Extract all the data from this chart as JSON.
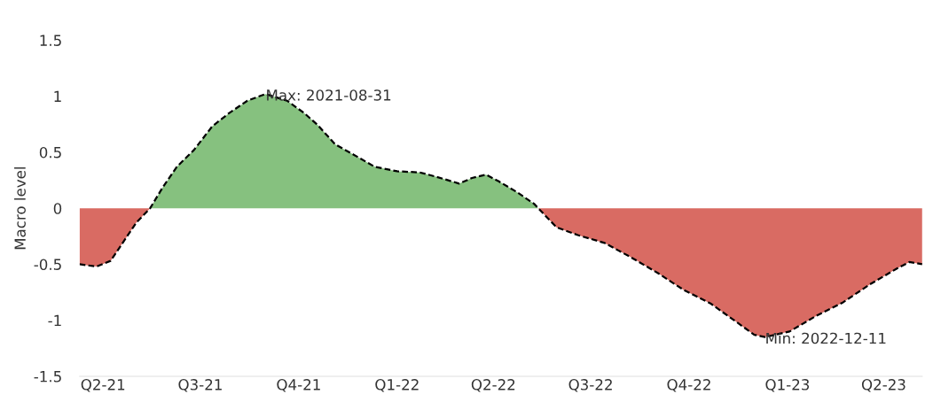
{
  "chart_data": {
    "type": "area",
    "ylabel": "Macro level",
    "x": [
      "2021-03-10",
      "2021-03-26",
      "2021-04-08",
      "2021-04-20",
      "2021-05-02",
      "2021-05-15",
      "2021-05-27",
      "2021-06-09",
      "2021-06-25",
      "2021-07-12",
      "2021-07-28",
      "2021-08-14",
      "2021-08-31",
      "2021-09-20",
      "2021-10-06",
      "2021-10-19",
      "2021-11-04",
      "2021-11-21",
      "2021-12-11",
      "2022-01-01",
      "2022-01-22",
      "2022-02-07",
      "2022-02-28",
      "2022-03-12",
      "2022-03-25",
      "2022-04-06",
      "2022-04-22",
      "2022-05-09",
      "2022-05-17",
      "2022-05-30",
      "2022-06-19",
      "2022-07-14",
      "2022-08-08",
      "2022-09-02",
      "2022-09-26",
      "2022-10-21",
      "2022-11-15",
      "2022-12-01",
      "2022-12-11",
      "2023-01-03",
      "2023-01-28",
      "2023-02-22",
      "2023-03-19",
      "2023-04-13",
      "2023-04-25",
      "2023-05-07"
    ],
    "series": [
      {
        "color": "#d96b63",
        "x": [
          "2021-03-10",
          "2021-03-26",
          "2021-04-08",
          "2021-04-20",
          "2021-05-02",
          "2021-05-15"
        ],
        "values": [
          -0.5,
          -0.52,
          -0.47,
          -0.3,
          -0.13,
          0
        ]
      },
      {
        "color": "#86c17f",
        "x": [
          "2021-05-15",
          "2021-05-27",
          "2021-06-09",
          "2021-06-25",
          "2021-07-12",
          "2021-07-28",
          "2021-08-14",
          "2021-08-31",
          "2021-09-20",
          "2021-10-06",
          "2021-10-19",
          "2021-11-04",
          "2021-11-21",
          "2021-12-11",
          "2022-01-01",
          "2022-01-22",
          "2022-02-07",
          "2022-02-28",
          "2022-03-12",
          "2022-03-25",
          "2022-04-06",
          "2022-04-22",
          "2022-05-09",
          "2022-05-13"
        ],
        "values": [
          0,
          0.19,
          0.37,
          0.52,
          0.73,
          0.85,
          0.96,
          1.02,
          0.96,
          0.85,
          0.74,
          0.57,
          0.48,
          0.37,
          0.33,
          0.32,
          0.28,
          0.22,
          0.27,
          0.3,
          0.24,
          0.15,
          0.04,
          0
        ]
      },
      {
        "color": "#d96b63",
        "x": [
          "2022-05-13",
          "2022-05-17",
          "2022-05-30",
          "2022-06-19",
          "2022-07-14",
          "2022-08-08",
          "2022-09-02",
          "2022-09-26",
          "2022-10-21",
          "2022-11-15",
          "2022-12-01",
          "2022-12-11",
          "2023-01-03",
          "2023-01-28",
          "2023-02-22",
          "2023-03-19",
          "2023-04-13",
          "2023-04-25",
          "2023-05-07"
        ],
        "values": [
          0,
          -0.04,
          -0.17,
          -0.24,
          -0.31,
          -0.44,
          -0.58,
          -0.73,
          -0.85,
          -1.02,
          -1.13,
          -1.15,
          -1.1,
          -0.96,
          -0.84,
          -0.68,
          -0.54,
          -0.48,
          -0.5
        ]
      },
      {
        "type": "line",
        "color": "#000000",
        "values": [
          -0.5,
          -0.52,
          -0.47,
          -0.3,
          -0.13,
          0,
          0.19,
          0.37,
          0.52,
          0.73,
          0.85,
          0.96,
          1.02,
          0.96,
          0.85,
          0.74,
          0.57,
          0.48,
          0.37,
          0.33,
          0.32,
          0.28,
          0.22,
          0.27,
          0.3,
          0.24,
          0.15,
          0.04,
          -0.04,
          -0.17,
          -0.24,
          -0.31,
          -0.44,
          -0.58,
          -0.73,
          -0.85,
          -1.02,
          -1.13,
          -1.15,
          -1.1,
          -0.96,
          -0.84,
          -0.68,
          -0.54,
          -0.48,
          -0.5
        ]
      }
    ],
    "line_style": "dashed",
    "marker": "none",
    "grid": false,
    "xlim": [
      "2021-03-10",
      "2023-05-07"
    ],
    "xticks": [
      {
        "value": "2021-04-01",
        "label": "Q2-21"
      },
      {
        "value": "2021-07-01",
        "label": "Q3-21"
      },
      {
        "value": "2021-10-01",
        "label": "Q4-21"
      },
      {
        "value": "2022-01-01",
        "label": "Q1-22"
      },
      {
        "value": "2022-04-01",
        "label": "Q2-22"
      },
      {
        "value": "2022-07-01",
        "label": "Q3-22"
      },
      {
        "value": "2022-10-01",
        "label": "Q4-22"
      },
      {
        "value": "2023-01-01",
        "label": "Q1-23"
      },
      {
        "value": "2023-04-01",
        "label": "Q2-23"
      }
    ],
    "ylim": [
      -1.5,
      1.5
    ],
    "yticks": [
      {
        "value": -1.5,
        "label": "-1.5"
      },
      {
        "value": -1,
        "label": "-1"
      },
      {
        "value": -0.5,
        "label": "-0.5"
      },
      0,
      {
        "value": 0.5,
        "label": "0.5"
      },
      1,
      {
        "value": 1.5,
        "label": "1.5"
      }
    ],
    "annotations": [
      {
        "text": "Max: 2021-08-31",
        "x": "2021-08-31",
        "y": 1.02
      },
      {
        "text": "Min: 2022-12-11",
        "x": "2022-12-11",
        "y": -1.15
      }
    ]
  }
}
